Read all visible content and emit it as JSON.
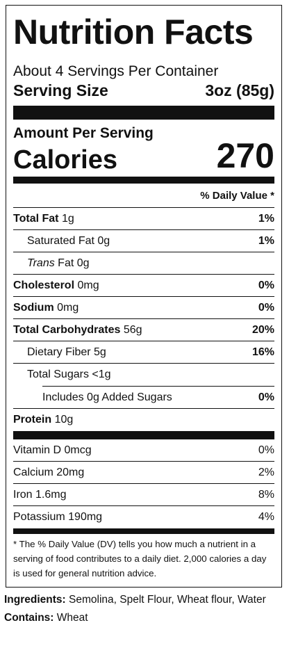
{
  "title": "Nutrition Facts",
  "servings_per_container": "About 4 Servings Per Container",
  "serving_size": {
    "label": "Serving Size",
    "value": "3oz (85g)"
  },
  "amount_per_serving": "Amount Per Serving",
  "calories": {
    "label": "Calories",
    "value": "270"
  },
  "daily_value_header": "% Daily Value *",
  "nutrients": {
    "total_fat": {
      "name": "Total Fat",
      "amount": "1g",
      "pct": "1%"
    },
    "saturated_fat": {
      "name": "Saturated Fat 0g",
      "pct": "1%"
    },
    "trans_fat": {
      "italic": "Trans",
      "rest": " Fat 0g"
    },
    "cholesterol": {
      "name": "Cholesterol",
      "amount": "0mg",
      "pct": "0%"
    },
    "sodium": {
      "name": "Sodium",
      "amount": "0mg",
      "pct": "0%"
    },
    "total_carbs": {
      "name": "Total Carbohydrates",
      "amount": "56g",
      "pct": "20%"
    },
    "dietary_fiber": {
      "name": "Dietary Fiber 5g",
      "pct": "16%"
    },
    "total_sugars": {
      "name": "Total Sugars <1g"
    },
    "added_sugars": {
      "name": "Includes 0g Added Sugars",
      "pct": "0%"
    },
    "protein": {
      "name": "Protein",
      "amount": "10g"
    }
  },
  "vitamins": [
    {
      "name": "Vitamin D 0mcg",
      "pct": "0%"
    },
    {
      "name": "Calcium 20mg",
      "pct": "2%"
    },
    {
      "name": "Iron 1.6mg",
      "pct": "8%"
    },
    {
      "name": "Potassium 190mg",
      "pct": "4%"
    }
  ],
  "footnote": "* The % Daily Value (DV) tells you how much a nutrient in a serving of food contributes to a daily diet. 2,000 calories a day is used for general nutrition advice.",
  "ingredients": {
    "label": "Ingredients:",
    "text": "Semolina, Spelt Flour, Wheat flour, Water"
  },
  "contains": {
    "label": "Contains:",
    "text": "Wheat"
  }
}
